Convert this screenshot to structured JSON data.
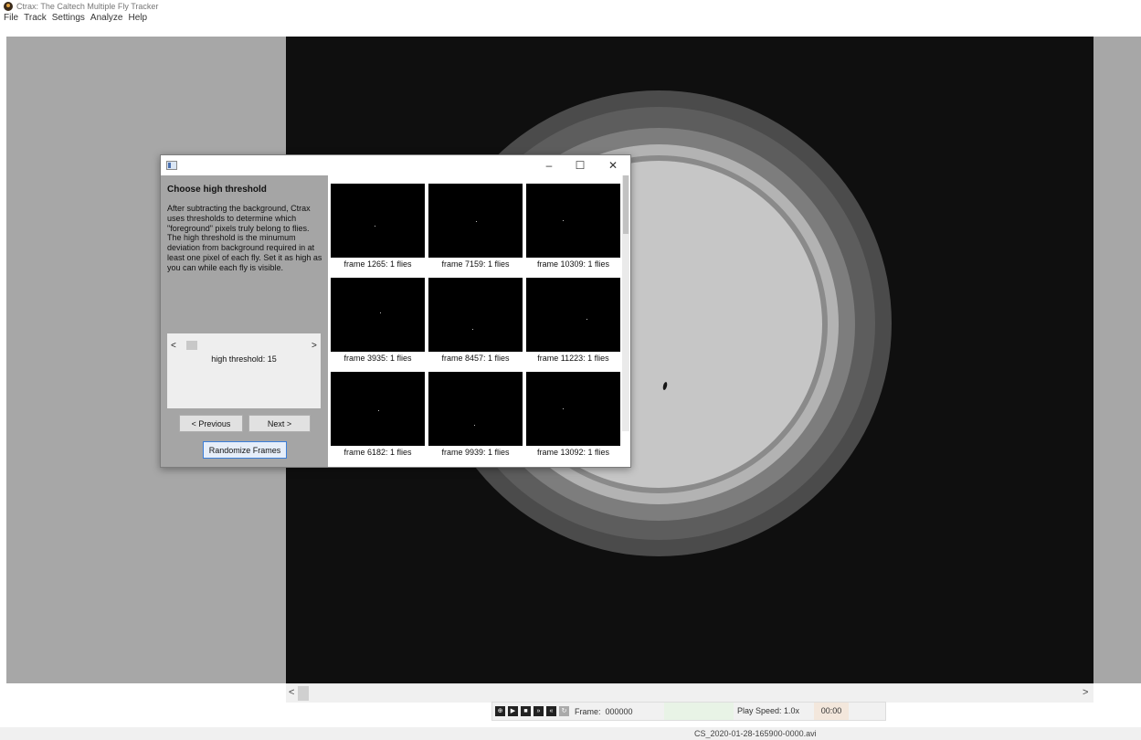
{
  "app": {
    "title": "Ctrax: The Caltech Multiple Fly Tracker",
    "menu": [
      "File",
      "Track",
      "Settings",
      "Analyze",
      "Help"
    ]
  },
  "scrollbar": {
    "left_arrow": "<",
    "right_arrow": ">"
  },
  "controls": {
    "icons": [
      "zoom-icon",
      "play-icon",
      "stop-icon",
      "fast-forward-icon",
      "rewind-icon",
      "refresh-icon"
    ],
    "frame_label": "Frame:",
    "frame_value": "000000",
    "play_speed": "Play Speed: 1.0x",
    "time": "00:00"
  },
  "status": {
    "filename": "CS_2020-01-28-165900-0000.avi"
  },
  "dialog": {
    "minimize": "–",
    "maximize": "☐",
    "close": "✕",
    "heading": "Choose high threshold",
    "description": "After subtracting the background, Ctrax uses thresholds to determine which \"foreground\" pixels truly belong to flies. The high threshold is the minumum deviation from background required in at least one pixel of each fly. Set it as high as you can while each fly is visible.",
    "slider_left": "<",
    "slider_right": ">",
    "threshold_label": "high threshold:",
    "threshold_value": 15,
    "previous_button": "< Previous",
    "next_button": "Next >",
    "randomize_button": "Randomize Frames",
    "frames": [
      {
        "caption": "frame 1265: 1 flies"
      },
      {
        "caption": "frame 7159: 1 flies"
      },
      {
        "caption": "frame 10309: 1 flies"
      },
      {
        "caption": "frame 3935: 1 flies"
      },
      {
        "caption": "frame 8457: 1 flies"
      },
      {
        "caption": "frame 11223: 1 flies"
      },
      {
        "caption": "frame 6182: 1 flies"
      },
      {
        "caption": "frame 9939: 1 flies"
      },
      {
        "caption": "frame 13092: 1 flies"
      }
    ]
  }
}
